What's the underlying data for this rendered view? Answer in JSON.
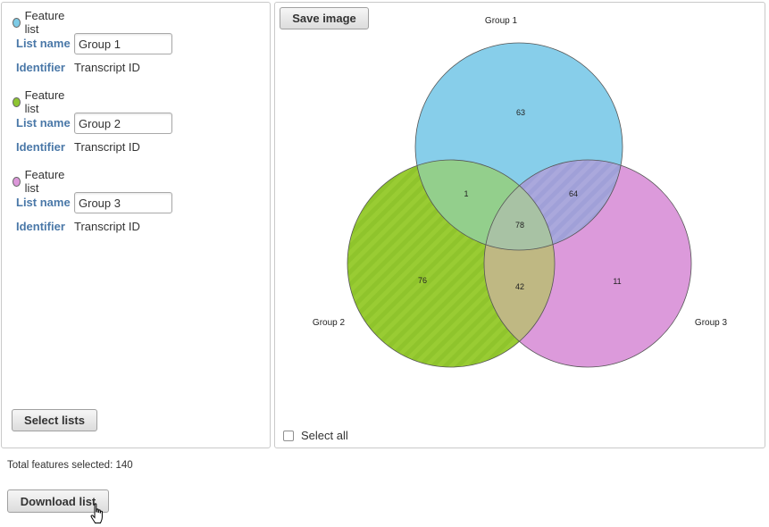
{
  "lists": [
    {
      "feature_label": "Feature list",
      "color": "#7ecbe6",
      "name_label": "List name",
      "name_value": "Group 1",
      "identifier_label": "Identifier",
      "identifier_value": "Transcript ID"
    },
    {
      "feature_label": "Feature list",
      "color": "#8ec531",
      "name_label": "List name",
      "name_value": "Group 2",
      "identifier_label": "Identifier",
      "identifier_value": "Transcript ID"
    },
    {
      "feature_label": "Feature list",
      "color": "#dc97d9",
      "name_label": "List name",
      "name_value": "Group 3",
      "identifier_label": "Identifier",
      "identifier_value": "Transcript ID"
    }
  ],
  "select_lists_label": "Select lists",
  "save_image_label": "Save image",
  "select_all_label": "Select all",
  "total_text": "Total features selected: 140",
  "download_label": "Download list",
  "venn": {
    "set_labels": [
      "Group 1",
      "Group 2",
      "Group 3"
    ],
    "counts": {
      "g1_only": "63",
      "g2_only": "76",
      "g3_only": "11",
      "g1_g2": "1",
      "g1_g3": "64",
      "g2_g3": "42",
      "all": "78"
    },
    "colors": {
      "g1": "#87ceea",
      "g2": "#99cc33",
      "g3": "#dc9adb"
    }
  }
}
